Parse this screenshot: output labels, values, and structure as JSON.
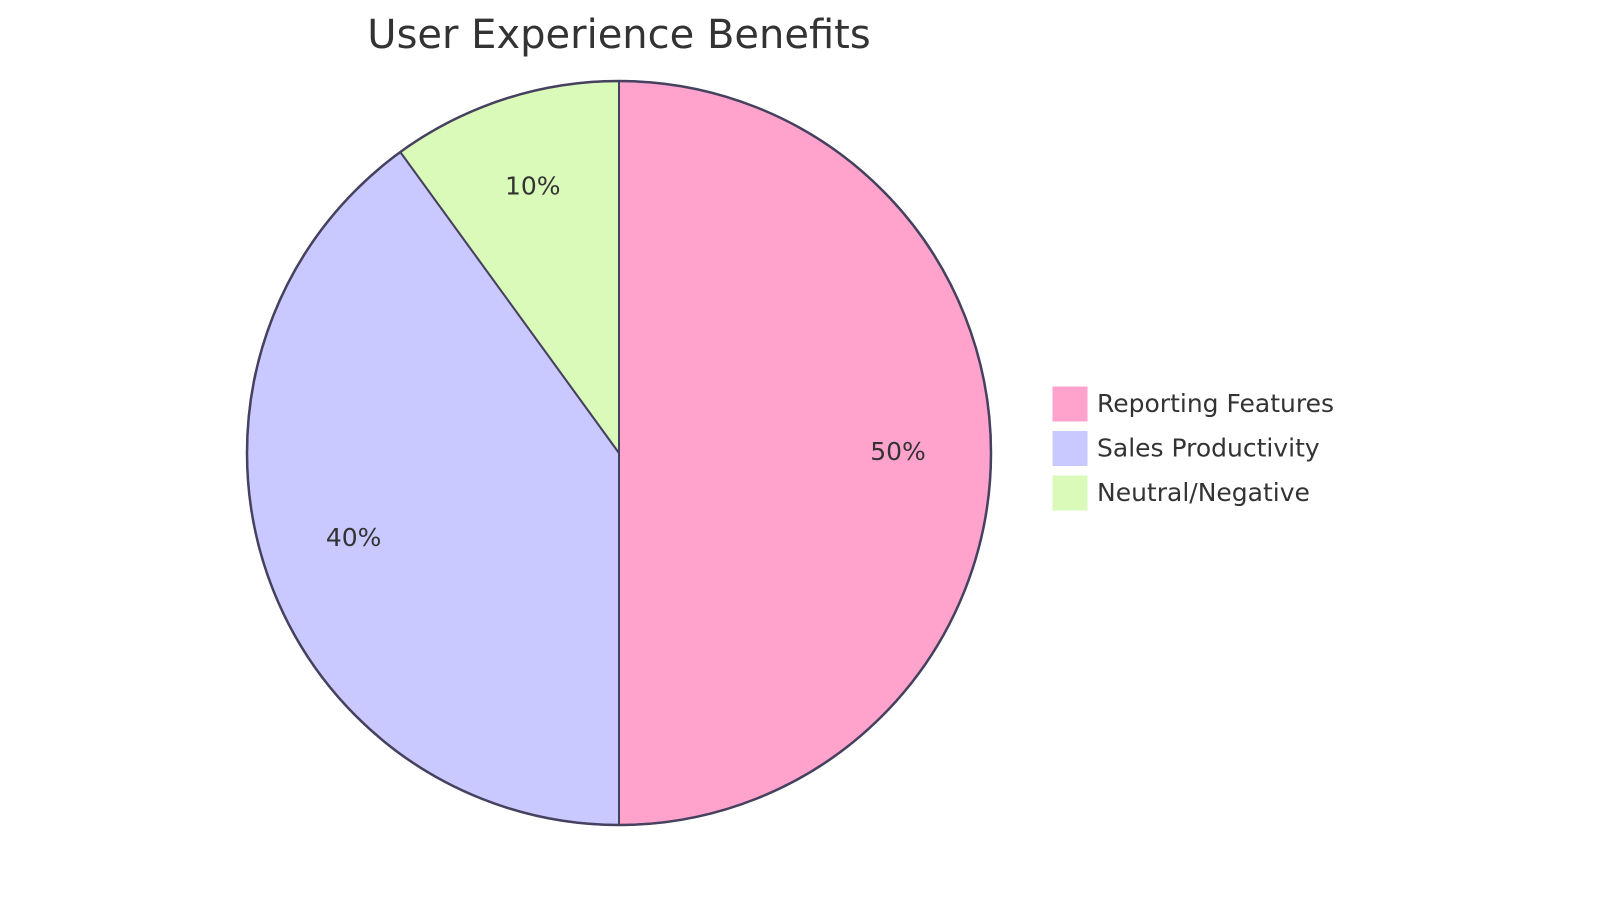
{
  "chart_data": {
    "type": "pie",
    "title": "User Experience Benefits",
    "categories": [
      "Reporting Features",
      "Sales Productivity",
      "Neutral/Negative"
    ],
    "values": [
      50,
      40,
      10
    ],
    "value_labels": [
      "50%",
      "40%",
      "10%"
    ],
    "colors": [
      "#ffa3cd",
      "#c9c9ff",
      "#dafab9"
    ],
    "stroke_color": "#45415e",
    "legend_position": "right",
    "start": "top",
    "direction": "clockwise"
  }
}
